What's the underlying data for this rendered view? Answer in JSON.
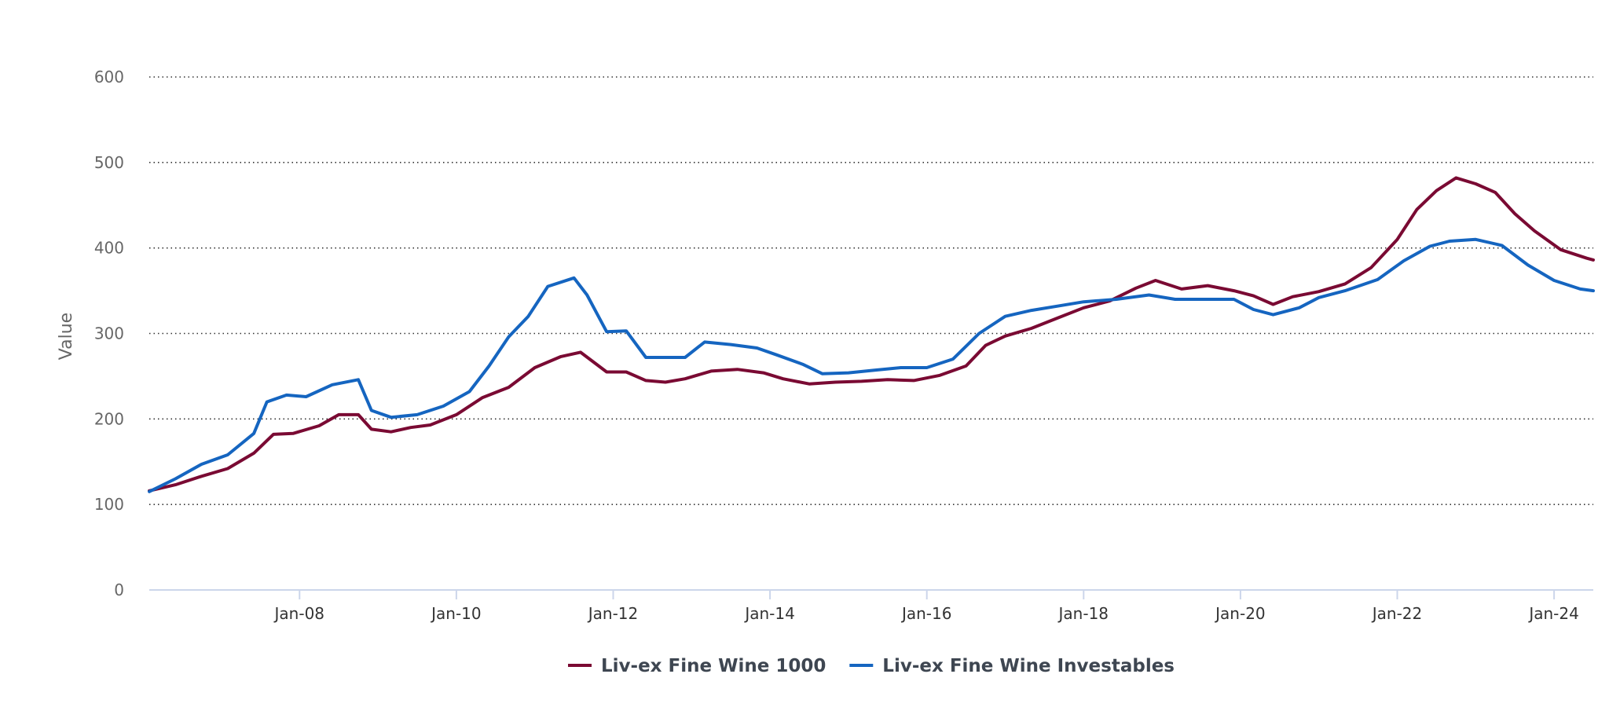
{
  "chart_data": {
    "type": "line",
    "title": "",
    "xlabel": "",
    "ylabel": "Value",
    "ylim": [
      0,
      600
    ],
    "y_ticks": [
      0,
      100,
      200,
      300,
      400,
      500,
      600
    ],
    "xlim": [
      "2006-02",
      "2024-07"
    ],
    "x_ticks": [
      {
        "label": "Jan-08",
        "date": "2008-01"
      },
      {
        "label": "Jan-10",
        "date": "2010-01"
      },
      {
        "label": "Jan-12",
        "date": "2012-01"
      },
      {
        "label": "Jan-14",
        "date": "2014-01"
      },
      {
        "label": "Jan-16",
        "date": "2016-01"
      },
      {
        "label": "Jan-18",
        "date": "2018-01"
      },
      {
        "label": "Jan-20",
        "date": "2020-01"
      },
      {
        "label": "Jan-22",
        "date": "2022-01"
      },
      {
        "label": "Jan-24",
        "date": "2024-01"
      }
    ],
    "grid": true,
    "legend_position": "bottom-center",
    "series": [
      {
        "name": "Liv-ex Fine Wine 1000",
        "color": "#7a0a33",
        "points": [
          [
            "2006-02",
            116
          ],
          [
            "2006-06",
            123
          ],
          [
            "2006-10",
            133
          ],
          [
            "2007-02",
            142
          ],
          [
            "2007-06",
            160
          ],
          [
            "2007-09",
            182
          ],
          [
            "2007-12",
            183
          ],
          [
            "2008-04",
            192
          ],
          [
            "2008-07",
            205
          ],
          [
            "2008-10",
            205
          ],
          [
            "2008-12",
            188
          ],
          [
            "2009-03",
            185
          ],
          [
            "2009-06",
            190
          ],
          [
            "2009-09",
            193
          ],
          [
            "2010-01",
            205
          ],
          [
            "2010-05",
            225
          ],
          [
            "2010-09",
            237
          ],
          [
            "2011-01",
            260
          ],
          [
            "2011-05",
            273
          ],
          [
            "2011-08",
            278
          ],
          [
            "2011-12",
            255
          ],
          [
            "2012-03",
            255
          ],
          [
            "2012-06",
            245
          ],
          [
            "2012-09",
            243
          ],
          [
            "2012-12",
            247
          ],
          [
            "2013-04",
            256
          ],
          [
            "2013-08",
            258
          ],
          [
            "2013-12",
            254
          ],
          [
            "2014-03",
            247
          ],
          [
            "2014-07",
            241
          ],
          [
            "2014-11",
            243
          ],
          [
            "2015-03",
            244
          ],
          [
            "2015-07",
            246
          ],
          [
            "2015-11",
            245
          ],
          [
            "2016-03",
            251
          ],
          [
            "2016-07",
            262
          ],
          [
            "2016-10",
            286
          ],
          [
            "2017-01",
            297
          ],
          [
            "2017-05",
            306
          ],
          [
            "2017-09",
            318
          ],
          [
            "2018-01",
            330
          ],
          [
            "2018-05",
            338
          ],
          [
            "2018-09",
            353
          ],
          [
            "2018-12",
            362
          ],
          [
            "2019-04",
            352
          ],
          [
            "2019-08",
            356
          ],
          [
            "2019-12",
            350
          ],
          [
            "2020-03",
            344
          ],
          [
            "2020-06",
            334
          ],
          [
            "2020-09",
            343
          ],
          [
            "2021-01",
            349
          ],
          [
            "2021-05",
            358
          ],
          [
            "2021-09",
            377
          ],
          [
            "2022-01",
            410
          ],
          [
            "2022-04",
            445
          ],
          [
            "2022-07",
            467
          ],
          [
            "2022-10",
            482
          ],
          [
            "2023-01",
            475
          ],
          [
            "2023-04",
            465
          ],
          [
            "2023-07",
            440
          ],
          [
            "2023-10",
            420
          ],
          [
            "2024-02",
            398
          ],
          [
            "2024-06",
            388
          ],
          [
            "2024-07",
            386
          ]
        ]
      },
      {
        "name": "Liv-ex Fine Wine Investables",
        "color": "#1565c0",
        "points": [
          [
            "2006-02",
            115
          ],
          [
            "2006-06",
            130
          ],
          [
            "2006-10",
            147
          ],
          [
            "2007-02",
            158
          ],
          [
            "2007-06",
            183
          ],
          [
            "2007-08",
            220
          ],
          [
            "2007-11",
            228
          ],
          [
            "2008-02",
            226
          ],
          [
            "2008-06",
            240
          ],
          [
            "2008-10",
            246
          ],
          [
            "2008-12",
            210
          ],
          [
            "2009-03",
            202
          ],
          [
            "2009-07",
            205
          ],
          [
            "2009-11",
            215
          ],
          [
            "2010-03",
            232
          ],
          [
            "2010-06",
            262
          ],
          [
            "2010-09",
            296
          ],
          [
            "2010-12",
            320
          ],
          [
            "2011-03",
            355
          ],
          [
            "2011-07",
            365
          ],
          [
            "2011-09",
            345
          ],
          [
            "2011-12",
            302
          ],
          [
            "2012-03",
            303
          ],
          [
            "2012-06",
            272
          ],
          [
            "2012-09",
            272
          ],
          [
            "2012-12",
            272
          ],
          [
            "2013-03",
            290
          ],
          [
            "2013-07",
            287
          ],
          [
            "2013-11",
            283
          ],
          [
            "2014-02",
            275
          ],
          [
            "2014-06",
            264
          ],
          [
            "2014-09",
            253
          ],
          [
            "2015-01",
            254
          ],
          [
            "2015-05",
            257
          ],
          [
            "2015-09",
            260
          ],
          [
            "2016-01",
            260
          ],
          [
            "2016-05",
            270
          ],
          [
            "2016-09",
            300
          ],
          [
            "2017-01",
            320
          ],
          [
            "2017-05",
            327
          ],
          [
            "2017-09",
            332
          ],
          [
            "2018-01",
            337
          ],
          [
            "2018-06",
            340
          ],
          [
            "2018-11",
            345
          ],
          [
            "2019-03",
            340
          ],
          [
            "2019-08",
            340
          ],
          [
            "2019-12",
            340
          ],
          [
            "2020-03",
            328
          ],
          [
            "2020-06",
            322
          ],
          [
            "2020-10",
            330
          ],
          [
            "2021-01",
            342
          ],
          [
            "2021-05",
            350
          ],
          [
            "2021-10",
            363
          ],
          [
            "2022-02",
            385
          ],
          [
            "2022-06",
            402
          ],
          [
            "2022-09",
            408
          ],
          [
            "2023-01",
            410
          ],
          [
            "2023-05",
            403
          ],
          [
            "2023-09",
            380
          ],
          [
            "2024-01",
            362
          ],
          [
            "2024-05",
            352
          ],
          [
            "2024-07",
            350
          ]
        ]
      }
    ]
  }
}
